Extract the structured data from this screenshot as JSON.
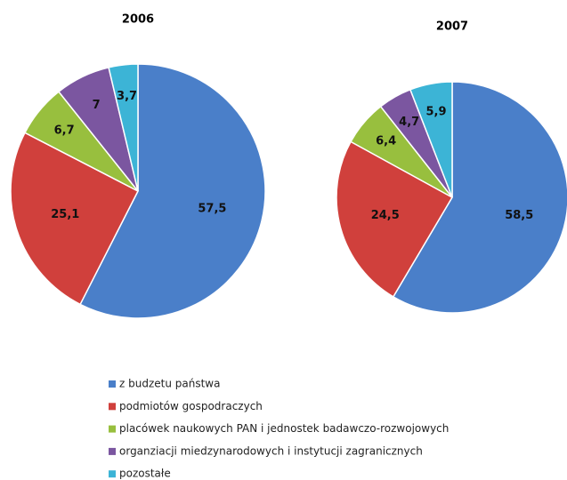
{
  "chart_data": [
    {
      "type": "pie",
      "title": "2006",
      "values": [
        57.5,
        25.1,
        6.7,
        7,
        3.7
      ],
      "value_labels": [
        "57,5",
        "25,1",
        "6,7",
        "7",
        "3,7"
      ]
    },
    {
      "type": "pie",
      "title": "2007",
      "values": [
        58.5,
        24.5,
        6.4,
        4.7,
        5.9
      ],
      "value_labels": [
        "58,5",
        "24,5",
        "6,4",
        "4,7",
        "5,9"
      ]
    }
  ],
  "legend": {
    "items": [
      "z budzetu państwa",
      "podmiotów gospodraczych",
      "placówek naukowych PAN i jednostek badawczo-rozwojowych",
      "organziacji miedzynarodowych i instytucji zagranicznych",
      "pozostałe"
    ],
    "colors": [
      "#4a7fc9",
      "#d0403c",
      "#98bf3e",
      "#7b56a0",
      "#3cb4d6"
    ]
  }
}
